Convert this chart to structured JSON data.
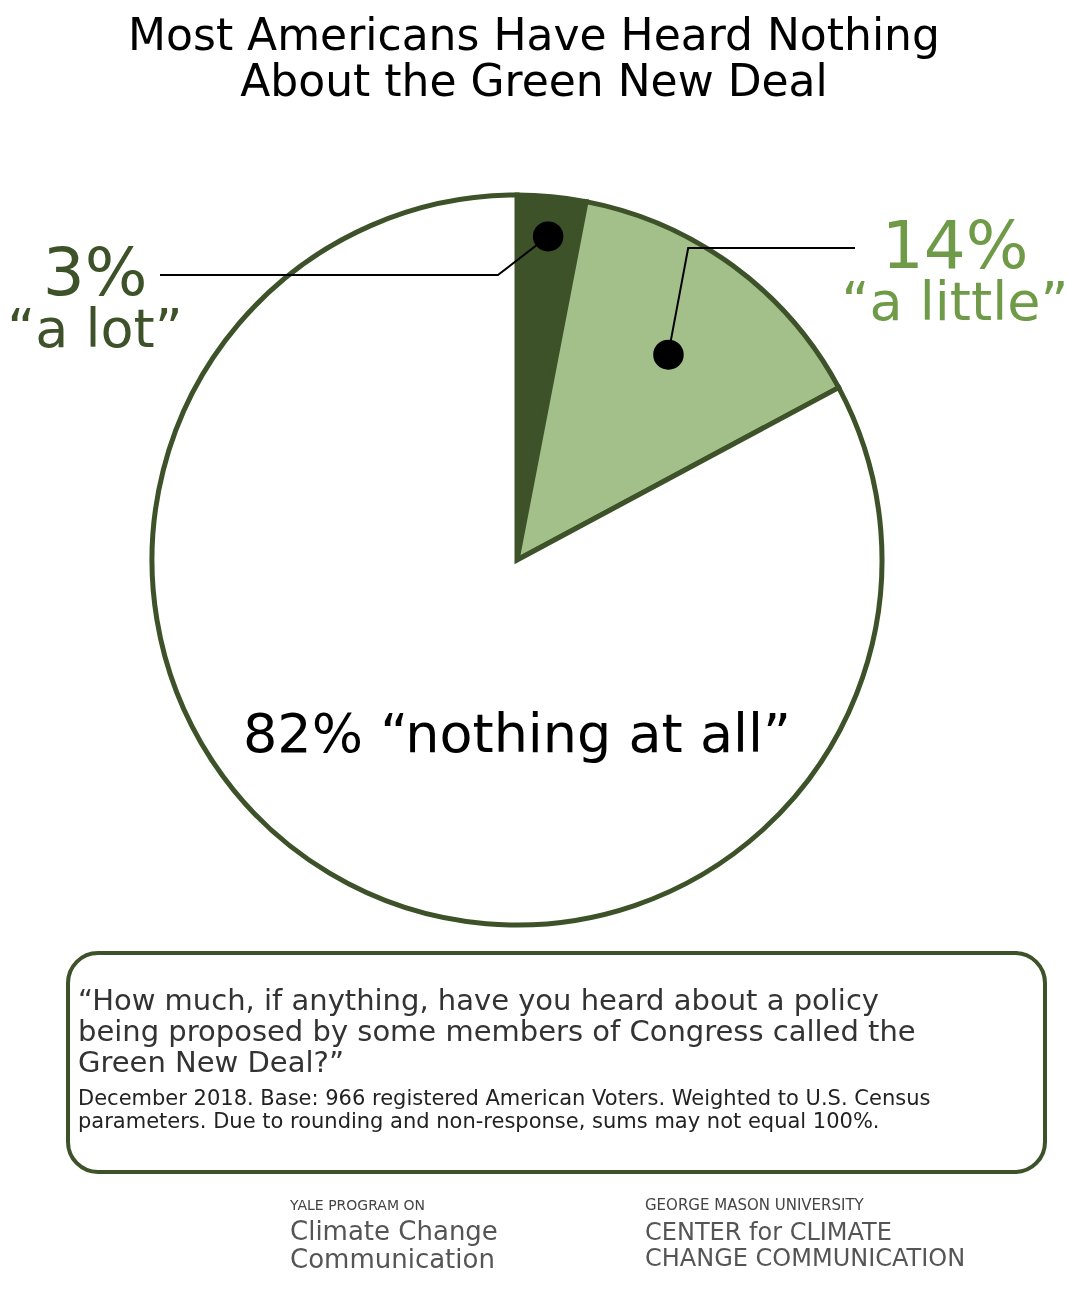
{
  "chart_data": {
    "type": "pie",
    "title": "Most Americans Have Heard Nothing About the Green New Deal",
    "categories": [
      "“a lot”",
      "“a little”",
      "“nothing at all”"
    ],
    "values": [
      3,
      14,
      82
    ],
    "colors": [
      "#3d5229",
      "#a3c08a",
      "#ffffff"
    ],
    "value_labels": [
      "3%",
      "14%",
      "82%"
    ],
    "annotations": [
      "“How much, if anything, have you heard about a policy being proposed by some members of Congress called the Green New Deal?”",
      "December 2018. Base: 966 registered American Voters. Weighted to U.S. Census parameters. Due to rounding and non-response, sums may not equal 100%.",
      "YALE PROGRAM ON",
      "Climate Change Communication",
      "GEORGE MASON UNIVERSITY",
      "CENTER for CLIMATE CHANGE COMMUNICATION"
    ]
  }
}
